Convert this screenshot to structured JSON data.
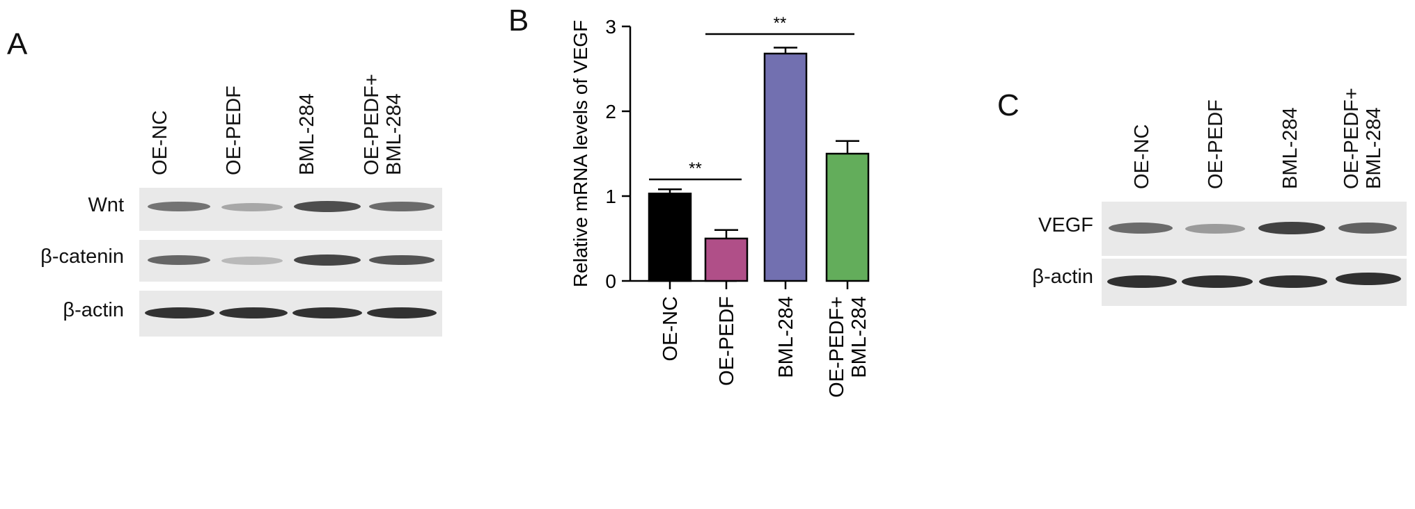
{
  "panels": {
    "a": {
      "letter": "A",
      "lanes": [
        "OE-NC",
        "OE-PEDF",
        "BML-284",
        "OE-PEDF+\nBML-284"
      ],
      "rows": [
        "Wnt",
        "β-catenin",
        "β-actin"
      ]
    },
    "b": {
      "letter": "B"
    },
    "c": {
      "letter": "C",
      "lanes": [
        "OE-NC",
        "OE-PEDF",
        "BML-284",
        "OE-PEDF+\nBML-284"
      ],
      "rows": [
        "VEGF",
        "β-actin"
      ]
    }
  },
  "chart_data": {
    "type": "bar",
    "categories": [
      "OE-NC",
      "OE-PEDF",
      "BML-284",
      "OE-PEDF+\nBML-284"
    ],
    "values": [
      1.03,
      0.5,
      2.68,
      1.5
    ],
    "errors": [
      0.05,
      0.1,
      0.07,
      0.15
    ],
    "colors": [
      "#000000",
      "#b04f88",
      "#7270b0",
      "#63ad5b"
    ],
    "ylabel": "Relative mRNA levels of VEGF",
    "xlabel": "",
    "ylim": [
      0,
      3
    ],
    "yticks": [
      0,
      1,
      2,
      3
    ],
    "grid": false,
    "significance": [
      {
        "from": 0,
        "to": 1,
        "label": "**"
      },
      {
        "from": 1,
        "to": 3,
        "label": "**"
      }
    ]
  }
}
